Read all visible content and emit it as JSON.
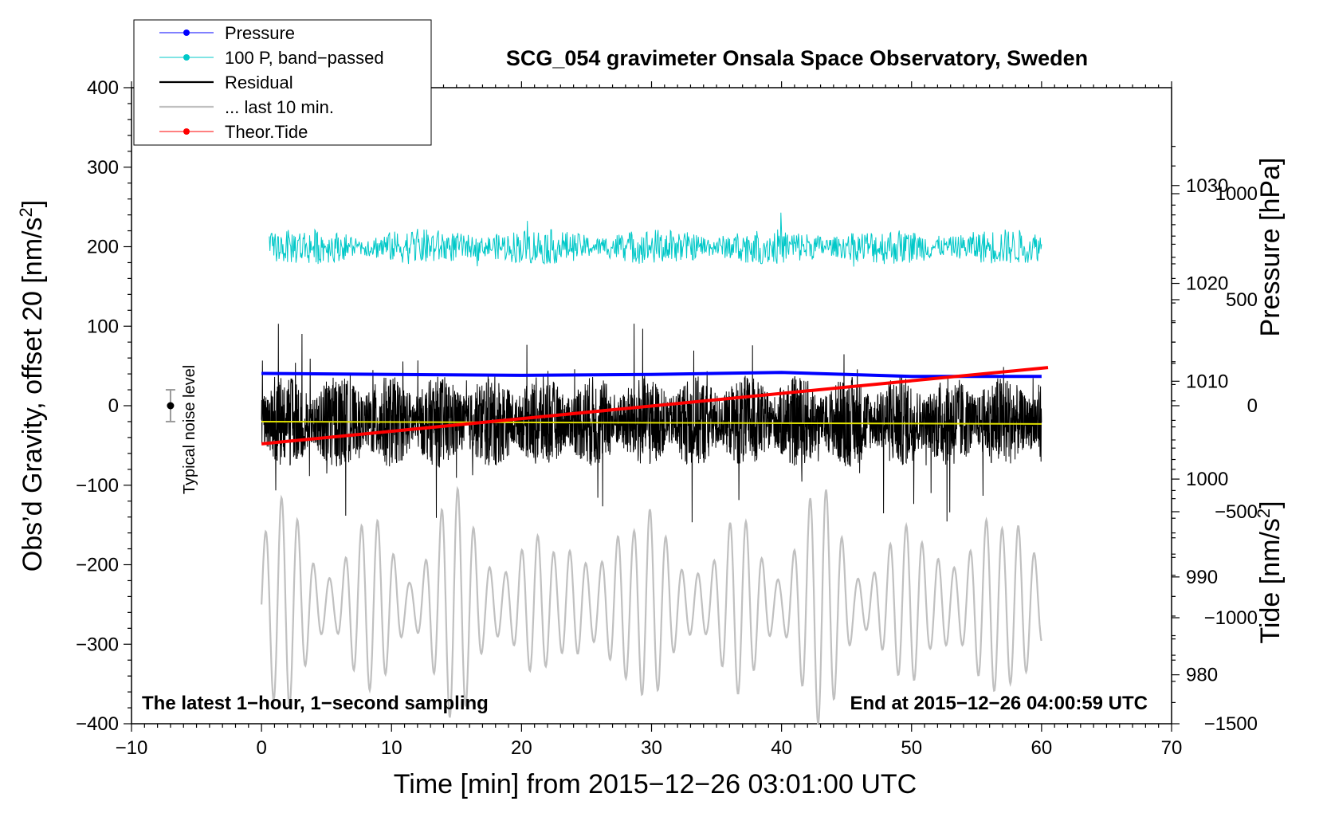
{
  "chart_data": {
    "type": "line",
    "title": "SCG_054 gravimeter Onsala Space Observatory, Sweden",
    "xlabel": "Time [min] from 2015−12−26 03:01:00 UTC",
    "ylabel": "Obs’d Gravity, offset 20 [nm/s",
    "ylabel_sup": "2",
    "ylabel_close": "]",
    "y2label": "Pressure [hPa]",
    "y3label": "Tide [nm/s",
    "y3label_sup": "2",
    "y3label_close": "]",
    "xlim": [
      -10,
      70
    ],
    "ylim": [
      -400,
      400
    ],
    "y2lim": [
      975,
      1040
    ],
    "y3lim": [
      -1500,
      1500
    ],
    "x_ticks": [
      -10,
      0,
      10,
      20,
      30,
      40,
      50,
      60,
      70
    ],
    "x_tick_labels": [
      "−10",
      "0",
      "10",
      "20",
      "30",
      "40",
      "50",
      "60",
      "70"
    ],
    "y_ticks": [
      400,
      300,
      200,
      100,
      0,
      -100,
      -200,
      -300,
      -400
    ],
    "y_tick_labels": [
      "400",
      "300",
      "200",
      "100",
      "0",
      "−100",
      "−200",
      "−300",
      "−400"
    ],
    "y2_ticks": [
      1030,
      1020,
      1010,
      1000,
      990,
      980
    ],
    "y2_tick_labels": [
      "1030",
      "1020",
      "1010",
      "1000",
      "990",
      "980"
    ],
    "y3_ticks": [
      1000,
      500,
      0,
      -500,
      -1000,
      -1500
    ],
    "y3_tick_labels": [
      "1000",
      "500",
      "0",
      "−500",
      "−1000",
      "−1500"
    ],
    "legend": [
      {
        "label": "Pressure",
        "color": "#0000ff",
        "marker": true,
        "width": 1
      },
      {
        "label": "100 P, band−passed",
        "color": "#00c8c8",
        "marker": true,
        "width": 1
      },
      {
        "label": "Residual",
        "color": "#000000",
        "marker": false,
        "width": 2.2
      },
      {
        "label": "... last 10 min.",
        "color": "#c0c0c0",
        "marker": false,
        "width": 2.2
      },
      {
        "label": "Theor.Tide",
        "color": "#ff0000",
        "marker": true,
        "width": 1
      }
    ],
    "legend_position": "top-left",
    "series": [
      {
        "name": "Pressure",
        "axis": "y2",
        "color": "#0000ff",
        "x": [
          0,
          10,
          20,
          30,
          40,
          45,
          50,
          60
        ],
        "values": [
          1010.8,
          1010.7,
          1010.6,
          1010.7,
          1010.9,
          1010.7,
          1010.5,
          1010.5
        ]
      },
      {
        "name": "100 P, band−passed",
        "axis": "y",
        "color": "#00c8c8",
        "offset_center": 200,
        "amplitude": 45
      },
      {
        "name": "Residual",
        "axis": "y",
        "color": "#000000",
        "offset_center": -20,
        "amplitude": 150
      },
      {
        "name": "Residual mean",
        "axis": "y",
        "color": "#e0e000",
        "x": [
          0,
          60
        ],
        "values": [
          -20,
          -23
        ]
      },
      {
        "name": "... last 10 min.",
        "axis": "y",
        "color": "#c0c0c0",
        "offset_center": -250,
        "amplitude": 110
      },
      {
        "name": "Theor.Tide",
        "axis": "y3",
        "color": "#ff0000",
        "x": [
          0,
          60.5
        ],
        "values": [
          -180,
          180
        ]
      }
    ],
    "noise_bar": {
      "x": -7,
      "y": 0,
      "half_range": 20,
      "label": "Typical noise level"
    },
    "annotations": {
      "bottom_left": "The latest 1−hour, 1−second sampling",
      "bottom_right": "End at 2015−12−26 04:00:59 UTC"
    }
  }
}
